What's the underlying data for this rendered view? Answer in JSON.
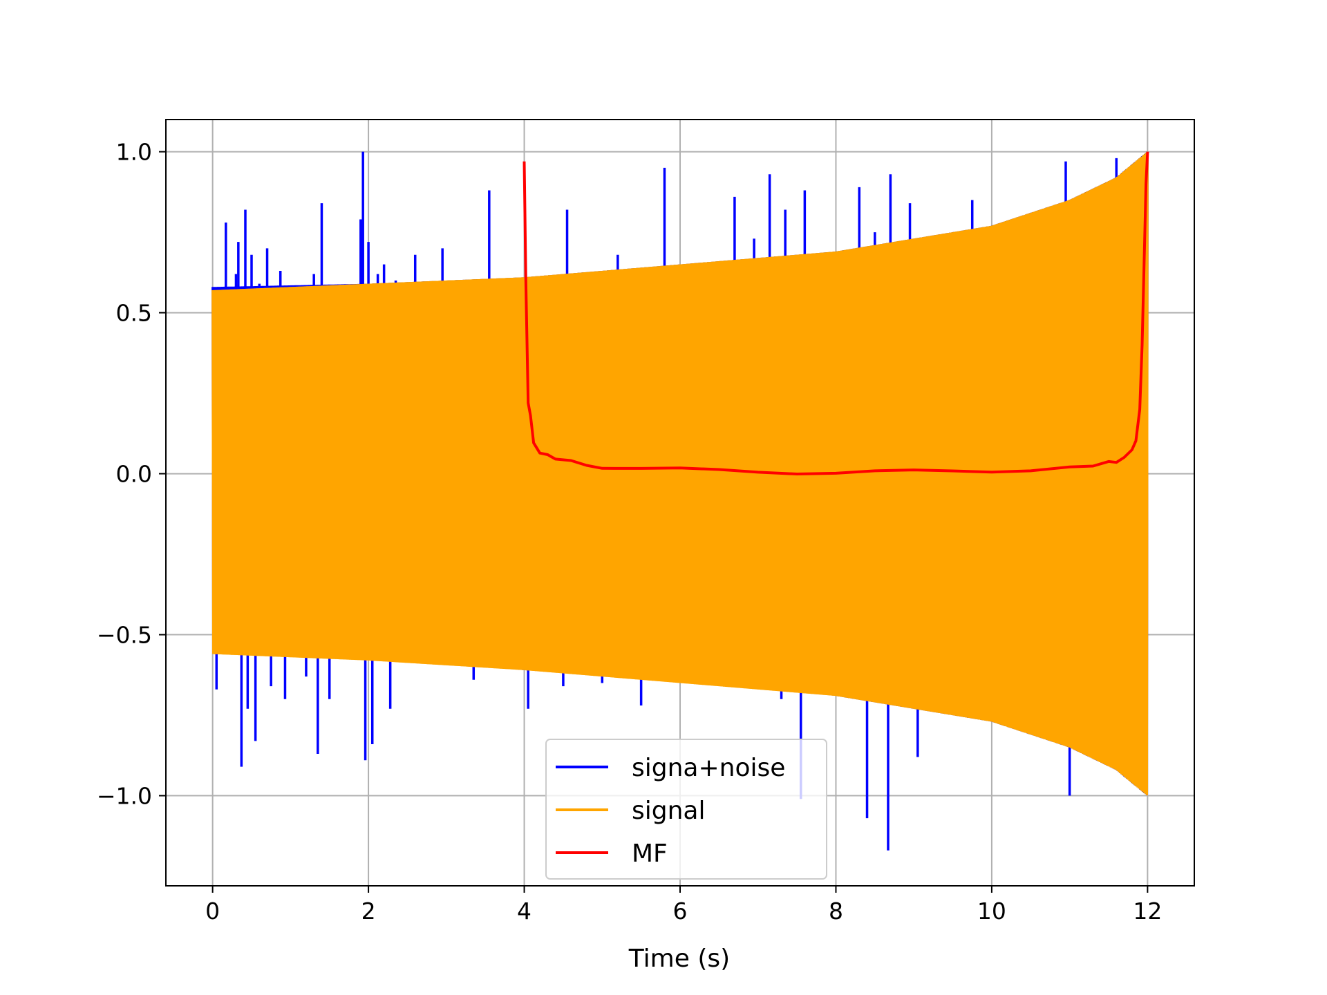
{
  "chart_data": {
    "type": "line",
    "title": "",
    "xlabel": "Time (s)",
    "ylabel": "",
    "xlim": [
      -0.6,
      12.6
    ],
    "ylim": [
      -1.28,
      1.1
    ],
    "xticks": [
      0,
      2,
      4,
      6,
      8,
      10,
      12
    ],
    "yticks": [
      -1.0,
      -0.5,
      0.0,
      0.5,
      1.0
    ],
    "xtick_labels": [
      "0",
      "2",
      "4",
      "6",
      "8",
      "10",
      "12"
    ],
    "ytick_labels": [
      "−1.0",
      "−0.5",
      "0.0",
      "0.5",
      "1.0"
    ],
    "grid": true,
    "legend_position": "lower-center",
    "series": [
      {
        "name": "signa+noise",
        "color": "#0000ff",
        "envelope": [
          {
            "x": 0,
            "lower": -0.56,
            "upper": 0.58
          },
          {
            "x": 2,
            "lower": -0.57,
            "upper": 0.59
          },
          {
            "x": 4,
            "lower": -0.61,
            "upper": 0.61
          },
          {
            "x": 6,
            "lower": -0.64,
            "upper": 0.65
          },
          {
            "x": 8,
            "lower": -0.69,
            "upper": 0.69
          },
          {
            "x": 10,
            "lower": -0.77,
            "upper": 0.77
          },
          {
            "x": 11,
            "lower": -0.85,
            "upper": 0.85
          },
          {
            "x": 11.6,
            "lower": -0.92,
            "upper": 0.92
          },
          {
            "x": 12,
            "lower": -1.0,
            "upper": 1.0
          }
        ],
        "spikes": [
          {
            "x": 0.05,
            "y": -0.67
          },
          {
            "x": 0.17,
            "y": 0.78
          },
          {
            "x": 0.3,
            "y": 0.62
          },
          {
            "x": 0.33,
            "y": 0.72
          },
          {
            "x": 0.37,
            "y": -0.91
          },
          {
            "x": 0.42,
            "y": 0.82
          },
          {
            "x": 0.45,
            "y": -0.73
          },
          {
            "x": 0.5,
            "y": 0.68
          },
          {
            "x": 0.55,
            "y": -0.83
          },
          {
            "x": 0.6,
            "y": 0.59
          },
          {
            "x": 0.7,
            "y": 0.7
          },
          {
            "x": 0.75,
            "y": -0.66
          },
          {
            "x": 0.8,
            "y": 0.55
          },
          {
            "x": 0.87,
            "y": 0.63
          },
          {
            "x": 0.93,
            "y": -0.7
          },
          {
            "x": 1.1,
            "y": 0.55
          },
          {
            "x": 1.2,
            "y": -0.63
          },
          {
            "x": 1.3,
            "y": 0.62
          },
          {
            "x": 1.35,
            "y": -0.87
          },
          {
            "x": 1.4,
            "y": 0.84
          },
          {
            "x": 1.5,
            "y": -0.7
          },
          {
            "x": 1.9,
            "y": 0.79
          },
          {
            "x": 1.93,
            "y": 1.0
          },
          {
            "x": 1.96,
            "y": -0.89
          },
          {
            "x": 2.0,
            "y": 0.72
          },
          {
            "x": 2.05,
            "y": -0.84
          },
          {
            "x": 2.12,
            "y": 0.62
          },
          {
            "x": 2.2,
            "y": 0.65
          },
          {
            "x": 2.28,
            "y": -0.73
          },
          {
            "x": 2.35,
            "y": 0.6
          },
          {
            "x": 2.6,
            "y": 0.68
          },
          {
            "x": 2.95,
            "y": 0.7
          },
          {
            "x": 3.35,
            "y": -0.64
          },
          {
            "x": 3.55,
            "y": 0.88
          },
          {
            "x": 4.05,
            "y": -0.73
          },
          {
            "x": 4.5,
            "y": -0.66
          },
          {
            "x": 4.55,
            "y": 0.82
          },
          {
            "x": 5.0,
            "y": -0.65
          },
          {
            "x": 5.2,
            "y": 0.68
          },
          {
            "x": 5.5,
            "y": -0.72
          },
          {
            "x": 5.8,
            "y": 0.95
          },
          {
            "x": 6.6,
            "y": 0.62
          },
          {
            "x": 6.7,
            "y": 0.86
          },
          {
            "x": 6.95,
            "y": 0.73
          },
          {
            "x": 7.15,
            "y": 0.93
          },
          {
            "x": 7.3,
            "y": -0.7
          },
          {
            "x": 7.35,
            "y": 0.82
          },
          {
            "x": 7.55,
            "y": -1.01
          },
          {
            "x": 7.6,
            "y": 0.88
          },
          {
            "x": 8.3,
            "y": 0.89
          },
          {
            "x": 8.4,
            "y": -1.07
          },
          {
            "x": 8.5,
            "y": 0.75
          },
          {
            "x": 8.67,
            "y": -1.17
          },
          {
            "x": 8.7,
            "y": 0.93
          },
          {
            "x": 8.95,
            "y": 0.84
          },
          {
            "x": 9.05,
            "y": -0.88
          },
          {
            "x": 9.75,
            "y": 0.85
          },
          {
            "x": 10.95,
            "y": 0.97
          },
          {
            "x": 11.0,
            "y": -1.0
          },
          {
            "x": 11.6,
            "y": 0.98
          }
        ]
      },
      {
        "name": "signal",
        "color": "#ffa500",
        "envelope": [
          {
            "x": 0,
            "lower": -0.56,
            "upper": 0.57
          },
          {
            "x": 2,
            "lower": -0.58,
            "upper": 0.59
          },
          {
            "x": 4,
            "lower": -0.61,
            "upper": 0.61
          },
          {
            "x": 6,
            "lower": -0.65,
            "upper": 0.65
          },
          {
            "x": 8,
            "lower": -0.69,
            "upper": 0.69
          },
          {
            "x": 10,
            "lower": -0.77,
            "upper": 0.77
          },
          {
            "x": 11,
            "lower": -0.85,
            "upper": 0.85
          },
          {
            "x": 11.6,
            "lower": -0.92,
            "upper": 0.92
          },
          {
            "x": 12,
            "lower": -1.0,
            "upper": 1.0
          }
        ]
      },
      {
        "name": "MF",
        "color": "#ff0000",
        "x": [
          4.0,
          4.02,
          4.05,
          4.08,
          4.12,
          4.2,
          4.3,
          4.4,
          4.6,
          4.8,
          5.0,
          5.5,
          6.0,
          6.5,
          7.0,
          7.5,
          8.0,
          8.5,
          9.0,
          9.5,
          10.0,
          10.5,
          11.0,
          11.3,
          11.5,
          11.6,
          11.7,
          11.8,
          11.85,
          11.9,
          11.93,
          11.96,
          11.98,
          12.0
        ],
        "y": [
          0.97,
          0.6,
          0.22,
          0.18,
          0.09,
          0.07,
          0.055,
          0.045,
          0.035,
          0.028,
          0.022,
          0.016,
          0.012,
          0.009,
          0.007,
          0.005,
          0.004,
          0.005,
          0.006,
          0.008,
          0.01,
          0.014,
          0.02,
          0.026,
          0.032,
          0.04,
          0.05,
          0.07,
          0.1,
          0.2,
          0.4,
          0.7,
          0.9,
          1.0
        ]
      }
    ]
  }
}
